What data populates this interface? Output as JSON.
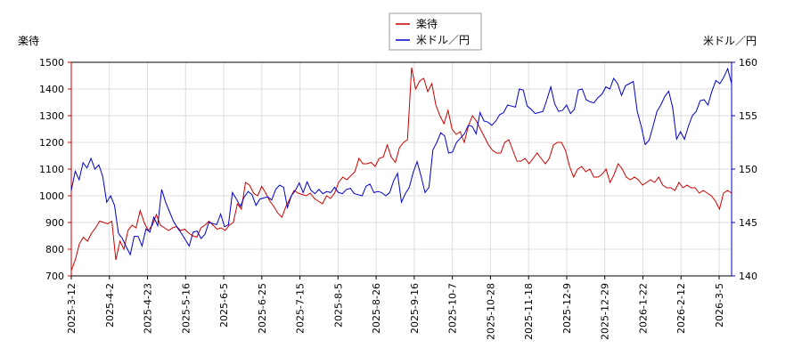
{
  "chart_data": {
    "type": "line",
    "left_axis_label": "楽待",
    "right_axis_label": "米ドル／円",
    "left_ylim": [
      700,
      1500
    ],
    "left_yticks": [
      700,
      800,
      900,
      1000,
      1100,
      1200,
      1300,
      1400,
      1500
    ],
    "right_ylim": [
      140,
      160
    ],
    "right_yticks": [
      140,
      145,
      150,
      155,
      160
    ],
    "x_ticks": [
      "2025-3-12",
      "2025-4-2",
      "2025-4-23",
      "2025-5-16",
      "2025-6-5",
      "2025-6-25",
      "2025-7-15",
      "2025-8-5",
      "2025-8-26",
      "2025-9-16",
      "2025-10-7",
      "2025-10-28",
      "2025-11-18",
      "2025-12-9",
      "2025-12-29",
      "2026-1-22",
      "2026-2-12",
      "2026-3-5"
    ],
    "grid": true,
    "legend_position": "top-center",
    "series": [
      {
        "name": "楽待",
        "axis": "left",
        "color": "#cc0000",
        "values": [
          720,
          760,
          820,
          845,
          830,
          860,
          880,
          905,
          900,
          895,
          905,
          760,
          830,
          800,
          870,
          890,
          880,
          945,
          900,
          870,
          890,
          930,
          890,
          880,
          870,
          880,
          885,
          870,
          875,
          860,
          850,
          845,
          880,
          890,
          905,
          890,
          875,
          880,
          870,
          890,
          900,
          970,
          950,
          1050,
          1040,
          1010,
          1000,
          1035,
          1010,
          980,
          960,
          935,
          920,
          960,
          990,
          1020,
          1010,
          1005,
          1000,
          1010,
          990,
          980,
          970,
          1000,
          990,
          1010,
          1050,
          1070,
          1060,
          1075,
          1090,
          1140,
          1120,
          1120,
          1125,
          1110,
          1140,
          1145,
          1190,
          1145,
          1125,
          1180,
          1200,
          1210,
          1480,
          1400,
          1430,
          1440,
          1390,
          1420,
          1340,
          1300,
          1270,
          1320,
          1250,
          1230,
          1240,
          1200,
          1260,
          1300,
          1280,
          1250,
          1220,
          1190,
          1170,
          1160,
          1160,
          1200,
          1210,
          1170,
          1130,
          1130,
          1140,
          1120,
          1140,
          1160,
          1140,
          1120,
          1140,
          1190,
          1200,
          1200,
          1170,
          1110,
          1070,
          1100,
          1110,
          1090,
          1100,
          1070,
          1070,
          1080,
          1100,
          1050,
          1080,
          1120,
          1100,
          1070,
          1060,
          1070,
          1060,
          1040,
          1050,
          1060,
          1050,
          1070,
          1040,
          1030,
          1030,
          1020,
          1050,
          1030,
          1040,
          1030,
          1030,
          1010,
          1020,
          1010,
          1000,
          980,
          950,
          1010,
          1020,
          1010
        ]
      },
      {
        "name": "米ドル／円",
        "axis": "right",
        "color": "#0000cc",
        "values": [
          148.0,
          149.8,
          149.0,
          150.6,
          150.1,
          151.0,
          150.0,
          150.4,
          149.3,
          146.9,
          147.5,
          146.6,
          144.0,
          143.5,
          142.7,
          142.0,
          143.7,
          143.7,
          142.8,
          144.4,
          144.1,
          145.5,
          144.7,
          148.1,
          146.9,
          146.0,
          145.1,
          144.5,
          144.0,
          143.4,
          142.8,
          144.1,
          144.2,
          143.5,
          143.9,
          145.0,
          144.9,
          144.8,
          145.8,
          144.6,
          144.8,
          147.8,
          147.2,
          146.5,
          147.4,
          147.9,
          147.6,
          146.6,
          147.2,
          147.3,
          147.4,
          147.1,
          148.1,
          148.5,
          148.3,
          146.4,
          147.5,
          148.0,
          148.7,
          147.8,
          148.8,
          148.0,
          147.7,
          148.1,
          147.7,
          147.9,
          147.8,
          148.3,
          147.8,
          147.7,
          148.1,
          148.2,
          147.7,
          147.6,
          147.5,
          148.4,
          148.6,
          147.8,
          147.9,
          147.8,
          147.5,
          147.8,
          148.9,
          149.6,
          146.9,
          147.7,
          148.3,
          149.7,
          150.7,
          149.3,
          147.8,
          148.3,
          151.8,
          152.5,
          153.4,
          153.1,
          151.5,
          151.6,
          152.5,
          152.9,
          153.3,
          154.1,
          154.0,
          153.3,
          155.3,
          154.5,
          154.4,
          154.1,
          154.5,
          155.1,
          155.3,
          156.0,
          155.9,
          155.8,
          157.5,
          157.4,
          155.9,
          155.6,
          155.2,
          155.3,
          155.4,
          156.5,
          157.7,
          156.1,
          155.4,
          155.5,
          156.0,
          155.2,
          155.6,
          157.4,
          157.5,
          156.5,
          156.3,
          156.2,
          156.7,
          157.0,
          157.7,
          157.5,
          158.5,
          158.0,
          156.9,
          157.8,
          158.0,
          158.2,
          155.4,
          154.0,
          152.3,
          152.7,
          154.0,
          155.4,
          156.0,
          156.8,
          157.3,
          155.8,
          152.8,
          153.5,
          152.8,
          154.0,
          155.0,
          155.4,
          156.4,
          156.5,
          156.0,
          157.3,
          158.3,
          158.0,
          158.6,
          159.4,
          158.0
        ]
      }
    ]
  }
}
